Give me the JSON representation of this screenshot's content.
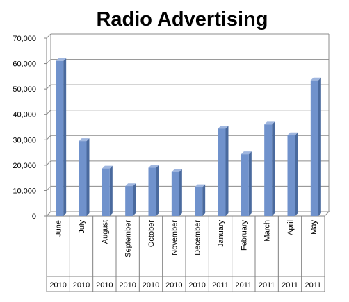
{
  "chart_data": {
    "type": "bar",
    "title": "Radio Advertising",
    "categories": [
      "June",
      "July",
      "August",
      "September",
      "October",
      "November",
      "December",
      "January",
      "February",
      "March",
      "April",
      "May"
    ],
    "years": [
      "2010",
      "2010",
      "2010",
      "2010",
      "2010",
      "2010",
      "2010",
      "2011",
      "2011",
      "2011",
      "2011",
      "2011"
    ],
    "values": [
      61000,
      29500,
      18700,
      11700,
      19000,
      17300,
      11300,
      34400,
      24300,
      36000,
      31800,
      53400
    ],
    "ylim": [
      0,
      70000
    ],
    "yticks": [
      "0",
      "10,000",
      "20,000",
      "30,000",
      "40,000",
      "50,000",
      "60,000",
      "70,000"
    ],
    "grid": true,
    "bar_color": "#7092cc",
    "bar_side_color": "#4a6a9e",
    "bar_top_color": "#9fb6df",
    "legend": "none"
  }
}
